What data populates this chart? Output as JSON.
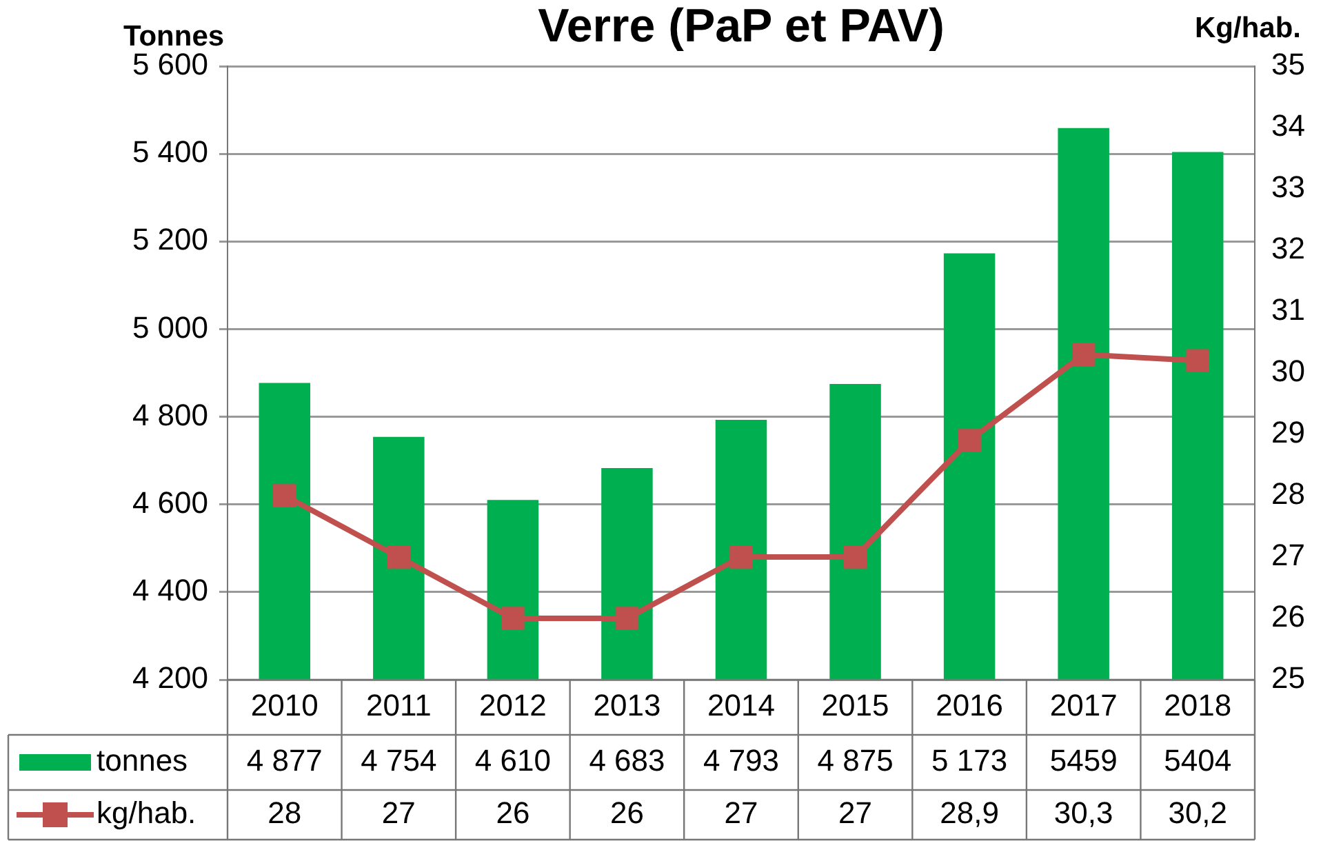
{
  "chart_data": {
    "type": "bar",
    "title": "Verre (PaP et PAV)",
    "ylabel": "Tonnes",
    "y2label": "Kg/hab.",
    "categories": [
      "2010",
      "2011",
      "2012",
      "2013",
      "2014",
      "2015",
      "2016",
      "2017",
      "2018"
    ],
    "series": [
      {
        "name": "tonnes",
        "color": "#00b050",
        "values": [
          4877,
          4754,
          4610,
          4683,
          4793,
          4875,
          5173,
          5459,
          5404
        ],
        "value_labels": [
          "4 877",
          "4 754",
          "4 610",
          "4 683",
          "4 793",
          "4 875",
          "5 173",
          "5459",
          "5404"
        ]
      },
      {
        "name": "kg/hab.",
        "type": "line",
        "axis": "y2",
        "color": "#c0504d",
        "marker": "square",
        "values": [
          28,
          27,
          26,
          26,
          27,
          27,
          28.9,
          30.3,
          30.2
        ],
        "value_labels": [
          "28",
          "27",
          "26",
          "26",
          "27",
          "27",
          "28,9",
          "30,3",
          "30,2"
        ]
      }
    ],
    "ylim": [
      4200,
      5600
    ],
    "yticks": [
      {
        "value": 4200,
        "label": "4 200"
      },
      {
        "value": 4400,
        "label": "4 400"
      },
      {
        "value": 4600,
        "label": "4 600"
      },
      {
        "value": 4800,
        "label": "4 800"
      },
      {
        "value": 5000,
        "label": "5 000"
      },
      {
        "value": 5200,
        "label": "5 200"
      },
      {
        "value": 5400,
        "label": "5 400"
      },
      {
        "value": 5600,
        "label": "5 600"
      }
    ],
    "y2lim": [
      25,
      35
    ],
    "y2ticks": [
      25,
      26,
      27,
      28,
      29,
      30,
      31,
      32,
      33,
      34,
      35
    ],
    "grid": "y",
    "legend": "bottom"
  }
}
